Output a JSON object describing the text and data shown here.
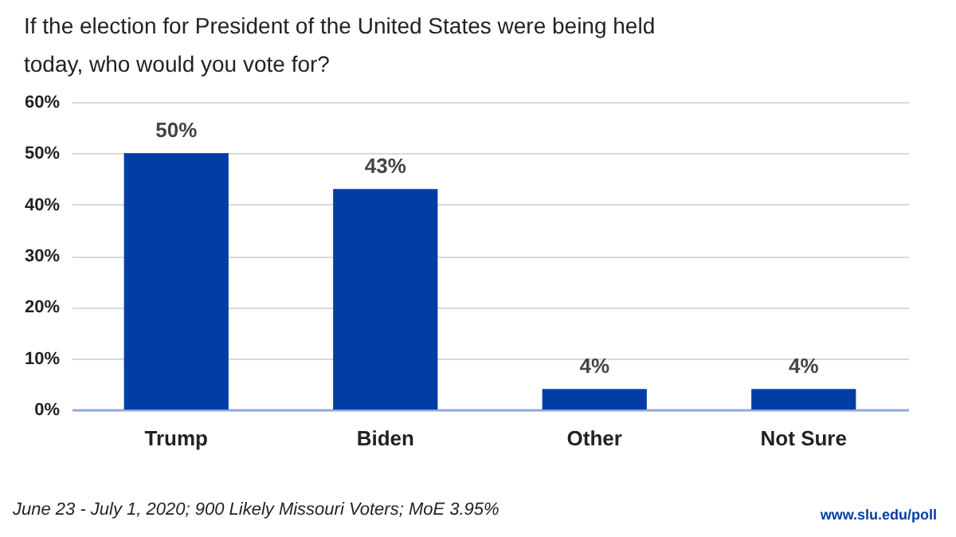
{
  "chart_data": {
    "type": "bar",
    "title": "If the election for President of the United States were being held today, who would you vote for?",
    "categories": [
      "Trump",
      "Biden",
      "Other",
      "Not Sure"
    ],
    "values": [
      50,
      43,
      4,
      4
    ],
    "value_labels": [
      "50%",
      "43%",
      "4%",
      "4%"
    ],
    "color": "#003da5",
    "ylim": [
      0,
      60
    ],
    "yticks": [
      {
        "value": 0,
        "label": "0%"
      },
      {
        "value": 10,
        "label": "10%"
      },
      {
        "value": 20,
        "label": "20%"
      },
      {
        "value": 30,
        "label": "30%"
      },
      {
        "value": 40,
        "label": "40%"
      },
      {
        "value": 50,
        "label": "50%"
      },
      {
        "value": 60,
        "label": "60%"
      }
    ],
    "grid": "y",
    "annotations": [
      "June 23 - July 1, 2020; 900 Likely Missouri Voters; MoE 3.95%",
      "www.slu.edu/poll"
    ]
  }
}
